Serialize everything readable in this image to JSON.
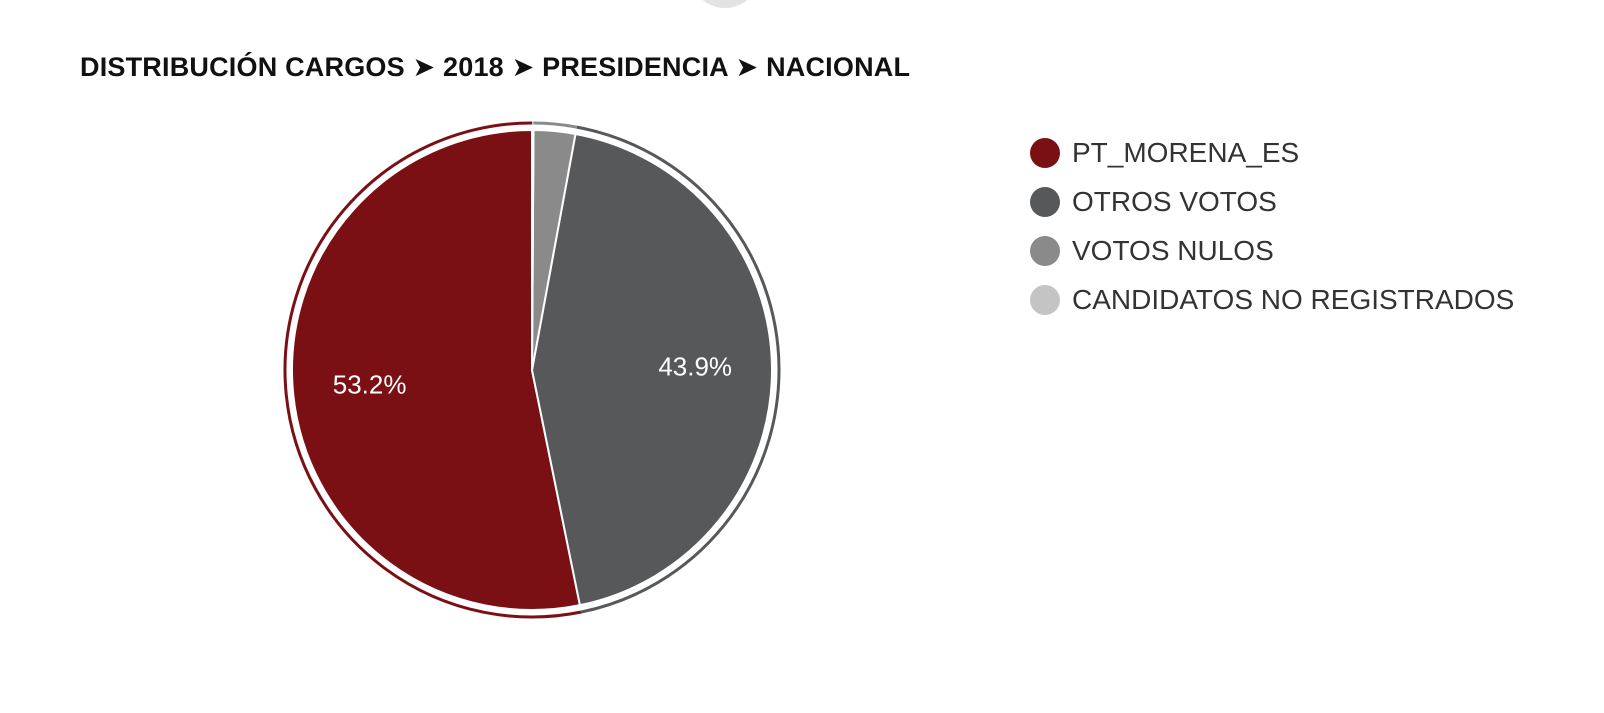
{
  "chart_data": {
    "type": "pie",
    "title": "DISTRIBUCIÓN CARGOS ➤ 2018 ➤ PRESIDENCIA ➤ NACIONAL",
    "categories": [
      "PT_MORENA_ES",
      "OTROS VOTOS",
      "VOTOS NULOS",
      "CANDIDATOS NO REGISTRADOS"
    ],
    "values": [
      53.2,
      43.9,
      2.8,
      0.1
    ],
    "data_labels": [
      "53.2%",
      "43.9%",
      "",
      ""
    ],
    "colors": [
      "#7a1014",
      "#565859",
      "#8a8a8a",
      "#c4c4c4"
    ],
    "legend_position": "right",
    "exploded": "PT_MORENA_ES"
  }
}
